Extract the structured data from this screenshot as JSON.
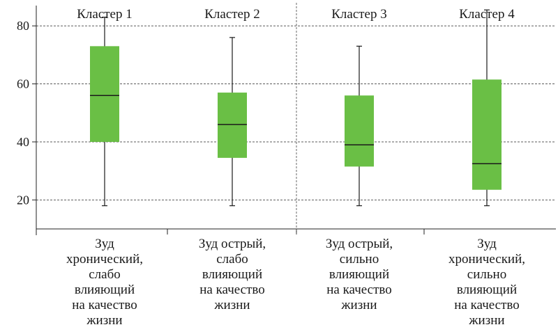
{
  "chart_data": {
    "type": "boxplot",
    "y_ticks": [
      20,
      40,
      60,
      80
    ],
    "ylim": [
      10,
      87
    ],
    "grid": "horizontal dashed",
    "box_color": "#6abf45",
    "clusters": [
      {
        "title": "Кластер 1",
        "label_lines": [
          "Зуд",
          "хронический,",
          "слабо",
          "влияющий",
          "на качество",
          "жизни"
        ],
        "min": 18,
        "q1": 40,
        "median": 56,
        "q3": 73,
        "max": 83
      },
      {
        "title": "Кластер 2",
        "label_lines": [
          "Зуд острый,",
          "слабо",
          "влияющий",
          "на качество",
          "жизни"
        ],
        "min": 18,
        "q1": 34.5,
        "median": 46,
        "q3": 57,
        "max": 76
      },
      {
        "title": "Кластер 3",
        "label_lines": [
          "Зуд острый,",
          "сильно",
          "влияющий",
          "на качество",
          "жизни"
        ],
        "min": 18,
        "q1": 31.5,
        "median": 39,
        "q3": 56,
        "max": 73
      },
      {
        "title": "Кластер 4",
        "label_lines": [
          "Зуд",
          "хронический,",
          "сильно",
          "влияющий",
          "на качество",
          "жизни"
        ],
        "min": 18,
        "q1": 23.5,
        "median": 32.5,
        "q3": 61.5,
        "max": 85.5
      }
    ]
  }
}
